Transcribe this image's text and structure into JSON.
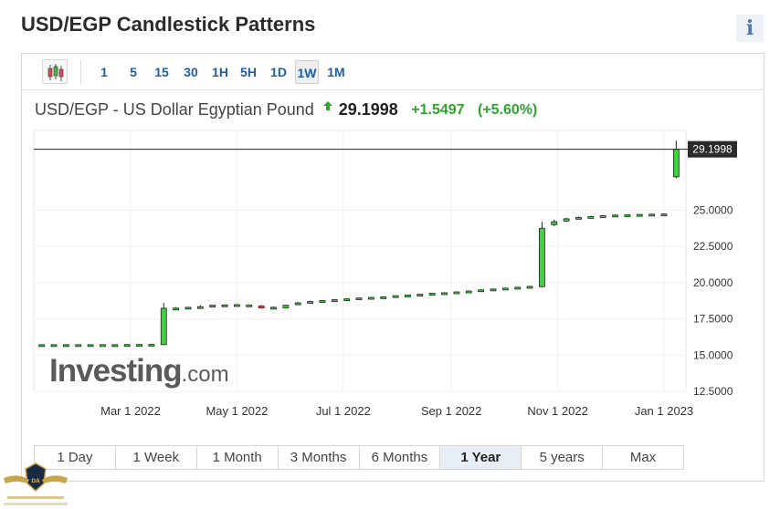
{
  "page": {
    "title": "USD/EGP Candlestick Patterns",
    "info_label": "i"
  },
  "toolbar": {
    "intervals": [
      "1",
      "5",
      "15",
      "30",
      "1H",
      "5H",
      "1D",
      "1W",
      "1M"
    ],
    "active_interval": "1W"
  },
  "quote": {
    "name": "USD/EGP - US Dollar Egyptian Pound",
    "price": "29.1998",
    "change": "+1.5497",
    "change_pct": "(+5.60%)",
    "direction": "up"
  },
  "chart_data": {
    "type": "candlestick",
    "y_ticks": [
      "25.0000",
      "22.5000",
      "20.0000",
      "17.5000",
      "15.0000",
      "12.5000"
    ],
    "ylim": [
      12.5,
      30.5
    ],
    "x_ticks": [
      "Mar 1 2022",
      "May 1 2022",
      "Jul 1 2022",
      "Sep 1 2022",
      "Nov 1 2022",
      "Jan 1 2023"
    ],
    "last_price_label": "29.1998",
    "last_price": 29.1998,
    "up_color": "#3fd23f",
    "down_color": "#ff4b4b",
    "candles": [
      {
        "date": "2022-01-09",
        "o": 15.7,
        "h": 15.73,
        "l": 15.68,
        "c": 15.72
      },
      {
        "date": "2022-01-16",
        "o": 15.7,
        "h": 15.73,
        "l": 15.68,
        "c": 15.72
      },
      {
        "date": "2022-01-23",
        "o": 15.7,
        "h": 15.74,
        "l": 15.68,
        "c": 15.72
      },
      {
        "date": "2022-01-30",
        "o": 15.7,
        "h": 15.74,
        "l": 15.68,
        "c": 15.72
      },
      {
        "date": "2022-02-06",
        "o": 15.7,
        "h": 15.74,
        "l": 15.68,
        "c": 15.72
      },
      {
        "date": "2022-02-13",
        "o": 15.7,
        "h": 15.74,
        "l": 15.68,
        "c": 15.72
      },
      {
        "date": "2022-02-20",
        "o": 15.7,
        "h": 15.74,
        "l": 15.68,
        "c": 15.72
      },
      {
        "date": "2022-02-27",
        "o": 15.71,
        "h": 15.75,
        "l": 15.69,
        "c": 15.73
      },
      {
        "date": "2022-03-06",
        "o": 15.71,
        "h": 15.76,
        "l": 15.69,
        "c": 15.73
      },
      {
        "date": "2022-03-13",
        "o": 15.72,
        "h": 15.78,
        "l": 15.69,
        "c": 15.74
      },
      {
        "date": "2022-03-20",
        "o": 15.72,
        "h": 18.6,
        "l": 15.7,
        "c": 18.23
      },
      {
        "date": "2022-03-27",
        "o": 18.22,
        "h": 18.3,
        "l": 18.18,
        "c": 18.24
      },
      {
        "date": "2022-04-03",
        "o": 18.26,
        "h": 18.32,
        "l": 18.22,
        "c": 18.3
      },
      {
        "date": "2022-04-10",
        "o": 18.3,
        "h": 18.44,
        "l": 18.26,
        "c": 18.34
      },
      {
        "date": "2022-04-17",
        "o": 18.34,
        "h": 18.46,
        "l": 18.3,
        "c": 18.44
      },
      {
        "date": "2022-04-24",
        "o": 18.42,
        "h": 18.5,
        "l": 18.38,
        "c": 18.46
      },
      {
        "date": "2022-05-01",
        "o": 18.46,
        "h": 18.52,
        "l": 18.42,
        "c": 18.48
      },
      {
        "date": "2022-05-08",
        "o": 18.44,
        "h": 18.5,
        "l": 18.4,
        "c": 18.46
      },
      {
        "date": "2022-05-15",
        "o": 18.38,
        "h": 18.46,
        "l": 18.22,
        "c": 18.28
      },
      {
        "date": "2022-05-22",
        "o": 18.28,
        "h": 18.36,
        "l": 18.22,
        "c": 18.3
      },
      {
        "date": "2022-05-29",
        "o": 18.26,
        "h": 18.48,
        "l": 18.2,
        "c": 18.44
      },
      {
        "date": "2022-06-05",
        "o": 18.52,
        "h": 18.66,
        "l": 18.48,
        "c": 18.6
      },
      {
        "date": "2022-06-12",
        "o": 18.62,
        "h": 18.74,
        "l": 18.58,
        "c": 18.7
      },
      {
        "date": "2022-06-19",
        "o": 18.7,
        "h": 18.8,
        "l": 18.66,
        "c": 18.76
      },
      {
        "date": "2022-06-26",
        "o": 18.76,
        "h": 18.86,
        "l": 18.72,
        "c": 18.82
      },
      {
        "date": "2022-07-03",
        "o": 18.84,
        "h": 18.92,
        "l": 18.8,
        "c": 18.88
      },
      {
        "date": "2022-07-10",
        "o": 18.88,
        "h": 18.96,
        "l": 18.84,
        "c": 18.94
      },
      {
        "date": "2022-07-17",
        "o": 18.92,
        "h": 19.0,
        "l": 18.88,
        "c": 18.98
      },
      {
        "date": "2022-07-24",
        "o": 18.96,
        "h": 19.04,
        "l": 18.92,
        "c": 19.02
      },
      {
        "date": "2022-07-31",
        "o": 18.98,
        "h": 19.1,
        "l": 18.94,
        "c": 19.1
      },
      {
        "date": "2022-08-07",
        "o": 19.06,
        "h": 19.16,
        "l": 19.02,
        "c": 19.14
      },
      {
        "date": "2022-08-14",
        "o": 19.12,
        "h": 19.22,
        "l": 19.08,
        "c": 19.2
      },
      {
        "date": "2022-08-21",
        "o": 19.18,
        "h": 19.28,
        "l": 19.12,
        "c": 19.26
      },
      {
        "date": "2022-08-28",
        "o": 19.24,
        "h": 19.34,
        "l": 19.2,
        "c": 19.3
      },
      {
        "date": "2022-09-04",
        "o": 19.28,
        "h": 19.38,
        "l": 19.24,
        "c": 19.36
      },
      {
        "date": "2022-09-11",
        "o": 19.34,
        "h": 19.46,
        "l": 19.3,
        "c": 19.42
      },
      {
        "date": "2022-09-18",
        "o": 19.4,
        "h": 19.54,
        "l": 19.36,
        "c": 19.5
      },
      {
        "date": "2022-09-25",
        "o": 19.48,
        "h": 19.6,
        "l": 19.44,
        "c": 19.56
      },
      {
        "date": "2022-10-02",
        "o": 19.54,
        "h": 19.66,
        "l": 19.5,
        "c": 19.62
      },
      {
        "date": "2022-10-09",
        "o": 19.6,
        "h": 19.72,
        "l": 19.56,
        "c": 19.68
      },
      {
        "date": "2022-10-16",
        "o": 19.66,
        "h": 19.78,
        "l": 19.62,
        "c": 19.74
      },
      {
        "date": "2022-10-23",
        "o": 19.72,
        "h": 24.2,
        "l": 19.68,
        "c": 23.75
      },
      {
        "date": "2022-10-30",
        "o": 24.0,
        "h": 24.35,
        "l": 23.9,
        "c": 24.2
      },
      {
        "date": "2022-11-06",
        "o": 24.25,
        "h": 24.48,
        "l": 24.2,
        "c": 24.4
      },
      {
        "date": "2022-11-13",
        "o": 24.44,
        "h": 24.56,
        "l": 24.4,
        "c": 24.5
      },
      {
        "date": "2022-11-20",
        "o": 24.52,
        "h": 24.62,
        "l": 24.48,
        "c": 24.56
      },
      {
        "date": "2022-11-27",
        "o": 24.56,
        "h": 24.66,
        "l": 24.52,
        "c": 24.62
      },
      {
        "date": "2022-12-04",
        "o": 24.6,
        "h": 24.7,
        "l": 24.56,
        "c": 24.66
      },
      {
        "date": "2022-12-11",
        "o": 24.64,
        "h": 24.72,
        "l": 24.6,
        "c": 24.68
      },
      {
        "date": "2022-12-18",
        "o": 24.66,
        "h": 24.74,
        "l": 24.62,
        "c": 24.7
      },
      {
        "date": "2022-12-25",
        "o": 24.68,
        "h": 24.76,
        "l": 24.64,
        "c": 24.72
      },
      {
        "date": "2023-01-01",
        "o": 24.7,
        "h": 24.78,
        "l": 24.66,
        "c": 24.74
      },
      {
        "date": "2023-01-08",
        "o": 27.3,
        "h": 29.8,
        "l": 27.2,
        "c": 29.2
      }
    ]
  },
  "watermark": {
    "brand": "Investing",
    "suffix": ".com"
  },
  "ranges": {
    "items": [
      "1 Day",
      "1 Week",
      "1 Month",
      "3 Months",
      "6 Months",
      "1 Year",
      "5 years",
      "Max"
    ],
    "active": "1 Year"
  }
}
